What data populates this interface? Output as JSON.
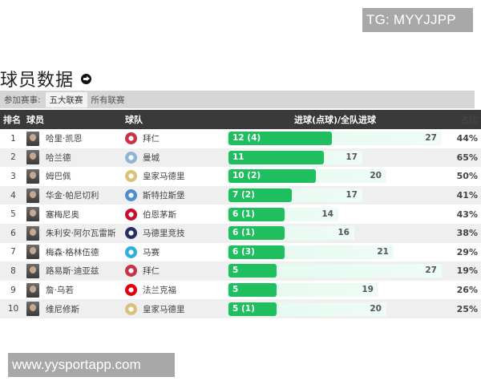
{
  "watermarks": {
    "top": "TG: MYYJJPP",
    "bottom": "www.yysportapp.com"
  },
  "header": {
    "title": "球员数据",
    "more_icon": "arrow-circle-right-icon"
  },
  "filter": {
    "label": "参加赛事:",
    "options": [
      {
        "label": "五大联赛",
        "active": true
      },
      {
        "label": "所有联赛",
        "active": false
      }
    ]
  },
  "table": {
    "columns": {
      "rank": "排名",
      "player": "球员",
      "team": "球队",
      "goals": "进球(点球)/全队进球",
      "pct": "占比"
    },
    "rows": [
      {
        "rank": "1",
        "player": "哈里·凯恩",
        "team": "拜仁",
        "goals": "12 (4)",
        "goals_n": 12,
        "team_goals": "27",
        "team_goals_n": 27,
        "pct": "44%",
        "crest_color": "#c8334a"
      },
      {
        "rank": "2",
        "player": "哈兰德",
        "team": "曼城",
        "goals": "11",
        "goals_n": 11,
        "team_goals": "17",
        "team_goals_n": 17,
        "pct": "65%",
        "crest_color": "#8fb4d9"
      },
      {
        "rank": "3",
        "player": "姆巴佩",
        "team": "皇家马德里",
        "goals": "10 (2)",
        "goals_n": 10,
        "team_goals": "20",
        "team_goals_n": 20,
        "pct": "50%",
        "crest_color": "#d9c27a"
      },
      {
        "rank": "4",
        "player": "华金·帕尼切利",
        "team": "斯特拉斯堡",
        "goals": "7 (2)",
        "goals_n": 7,
        "team_goals": "17",
        "team_goals_n": 17,
        "pct": "41%",
        "crest_color": "#4a8fd0"
      },
      {
        "rank": "5",
        "player": "塞梅尼奥",
        "team": "伯恩茅斯",
        "goals": "6 (1)",
        "goals_n": 6,
        "team_goals": "14",
        "team_goals_n": 14,
        "pct": "43%",
        "crest_color": "#c8102e"
      },
      {
        "rank": "6",
        "player": "朱利安·阿尔瓦雷斯",
        "team": "马德里竞技",
        "goals": "6 (1)",
        "goals_n": 6,
        "team_goals": "16",
        "team_goals_n": 16,
        "pct": "38%",
        "crest_color": "#272e61"
      },
      {
        "rank": "7",
        "player": "梅森·格林伍德",
        "team": "马赛",
        "goals": "6 (3)",
        "goals_n": 6,
        "team_goals": "21",
        "team_goals_n": 21,
        "pct": "29%",
        "crest_color": "#2faee0"
      },
      {
        "rank": "8",
        "player": "路易斯·迪亚兹",
        "team": "拜仁",
        "goals": "5",
        "goals_n": 5,
        "team_goals": "27",
        "team_goals_n": 27,
        "pct": "19%",
        "crest_color": "#c8334a"
      },
      {
        "rank": "9",
        "player": "詹·乌若",
        "team": "法兰克福",
        "goals": "5",
        "goals_n": 5,
        "team_goals": "19",
        "team_goals_n": 19,
        "pct": "26%",
        "crest_color": "#e1000f"
      },
      {
        "rank": "10",
        "player": "维尼修斯",
        "team": "皇家马德里",
        "goals": "5 (1)",
        "goals_n": 5,
        "team_goals": "20",
        "team_goals_n": 20,
        "pct": "25%",
        "crest_color": "#d9c27a"
      }
    ]
  },
  "colors": {
    "header_bg": "#3a3a3a",
    "goal_bar": "#1fbf5f",
    "team_bar": "#e3f9ee",
    "filter_bg": "#d5d5d5"
  }
}
